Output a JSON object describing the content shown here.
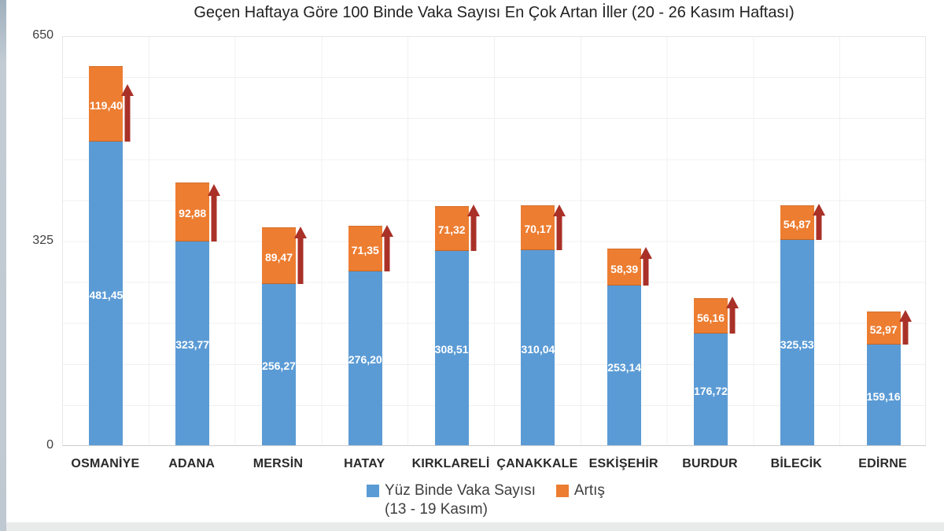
{
  "page": {
    "background_color": "#ffffff",
    "left_strip_color": "#bfc9d2",
    "bottom_strip_color": "#e9eaea"
  },
  "chart_data": {
    "type": "bar",
    "stacked": true,
    "title": "Geçen Haftaya Göre 100 Binde Vaka Sayısı En Çok Artan İller (20 - 26 Kasım Haftası)",
    "categories": [
      "OSMANİYE",
      "ADANA",
      "MERSİN",
      "HATAY",
      "KIRKLARELİ",
      "ÇANAKKALE",
      "ESKİŞEHİR",
      "BURDUR",
      "BİLECİK",
      "EDİRNE"
    ],
    "series": [
      {
        "name": "Yüz Binde Vaka Sayısı (13 - 19 Kasım)",
        "color": "#5b9bd5",
        "values": [
          481.45,
          323.77,
          256.27,
          276.2,
          308.51,
          310.04,
          253.14,
          176.72,
          325.53,
          159.16
        ],
        "labels": [
          "481,45",
          "323,77",
          "256,27",
          "276,20",
          "308,51",
          "310,04",
          "253,14",
          "176,72",
          "325,53",
          "159,16"
        ]
      },
      {
        "name": "Artış",
        "color": "#ed7d31",
        "values": [
          119.4,
          92.88,
          89.47,
          71.35,
          71.32,
          70.17,
          58.39,
          56.16,
          54.87,
          52.97
        ],
        "labels": [
          "119,40",
          "92,88",
          "89,47",
          "71,35",
          "71,32",
          "70,17",
          "58,39",
          "56,16",
          "54,87",
          "52,97"
        ]
      }
    ],
    "ylim": [
      0,
      650
    ],
    "yticks": [
      {
        "label": "650",
        "value": 650
      },
      {
        "label": "325",
        "value": 325
      },
      {
        "label": "0",
        "value": 0
      }
    ],
    "grid": {
      "on": true,
      "color": "#f0f0f0",
      "horizontal_interval": 65,
      "vertical": "category-boundaries"
    },
    "bar_label_color": "#ffffff",
    "annotations": {
      "increase_arrow": {
        "direction": "up",
        "color": "#a93128",
        "per_bar": true
      }
    },
    "legend": {
      "position": "bottom-center",
      "items": [
        {
          "line1": "Yüz Binde Vaka Sayısı",
          "line2": "(13 - 19 Kasım)",
          "color": "#5b9bd5"
        },
        {
          "line1": "Artış",
          "line2": "",
          "color": "#ed7d31"
        }
      ]
    }
  }
}
